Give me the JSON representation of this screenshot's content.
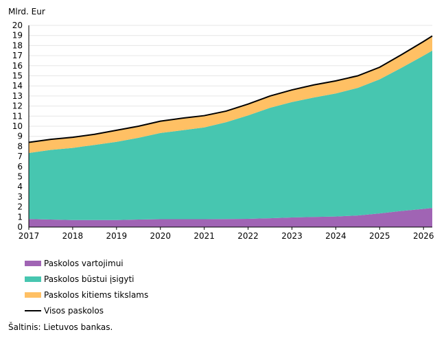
{
  "chart_data": {
    "type": "area",
    "ylabel": "Mlrd. Eur",
    "ylim": [
      0,
      20
    ],
    "y_ticks": [
      "0",
      "1",
      "2",
      "3",
      "4",
      "5",
      "6",
      "7",
      "8",
      "9",
      "10",
      "11",
      "12",
      "13",
      "14",
      "15",
      "16",
      "17",
      "18",
      "19",
      "20"
    ],
    "x_ticks": [
      "2017",
      "2018",
      "2019",
      "2020",
      "2021",
      "2022",
      "2023",
      "2024",
      "2025",
      "2026"
    ],
    "x_tick_values": [
      2017,
      2018,
      2019,
      2020,
      2021,
      2022,
      2023,
      2024,
      2025,
      2026
    ],
    "xlim": [
      2017,
      2026.2
    ],
    "grid": true,
    "stacked": true,
    "x": [
      2017.0,
      2017.5,
      2018.0,
      2018.5,
      2019.0,
      2019.5,
      2020.0,
      2020.5,
      2021.0,
      2021.5,
      2022.0,
      2022.5,
      2023.0,
      2023.5,
      2024.0,
      2024.5,
      2025.0,
      2025.5,
      2026.0,
      2026.2
    ],
    "series": [
      {
        "name": "Paskolos vartojimui",
        "color": "#a064b4",
        "values": [
          0.8,
          0.75,
          0.7,
          0.7,
          0.7,
          0.75,
          0.78,
          0.78,
          0.78,
          0.8,
          0.82,
          0.88,
          0.95,
          1.0,
          1.05,
          1.15,
          1.35,
          1.6,
          1.8,
          1.9
        ]
      },
      {
        "name": "Paskolos būstui įsigyti",
        "color": "#47c6b0",
        "values": [
          6.55,
          6.9,
          7.15,
          7.45,
          7.75,
          8.1,
          8.55,
          8.82,
          9.1,
          9.6,
          10.25,
          10.95,
          11.45,
          11.85,
          12.2,
          12.65,
          13.3,
          14.2,
          15.2,
          15.6
        ]
      },
      {
        "name": "Paskolos kitiems tikslams",
        "color": "#ffc064",
        "values": [
          1.05,
          1.05,
          1.05,
          1.05,
          1.15,
          1.15,
          1.17,
          1.2,
          1.17,
          1.1,
          1.13,
          1.17,
          1.2,
          1.25,
          1.25,
          1.2,
          1.2,
          1.3,
          1.4,
          1.45
        ]
      },
      {
        "name": "Visos paskolos",
        "color": "#000000",
        "type": "line",
        "values": [
          8.4,
          8.7,
          8.9,
          9.2,
          9.6,
          10.0,
          10.5,
          10.8,
          11.05,
          11.5,
          12.2,
          13.0,
          13.6,
          14.1,
          14.5,
          15.0,
          15.85,
          17.1,
          18.4,
          18.95
        ]
      }
    ],
    "legend_position": "bottom-left"
  },
  "source": "Šaltinis: Lietuvos bankas."
}
